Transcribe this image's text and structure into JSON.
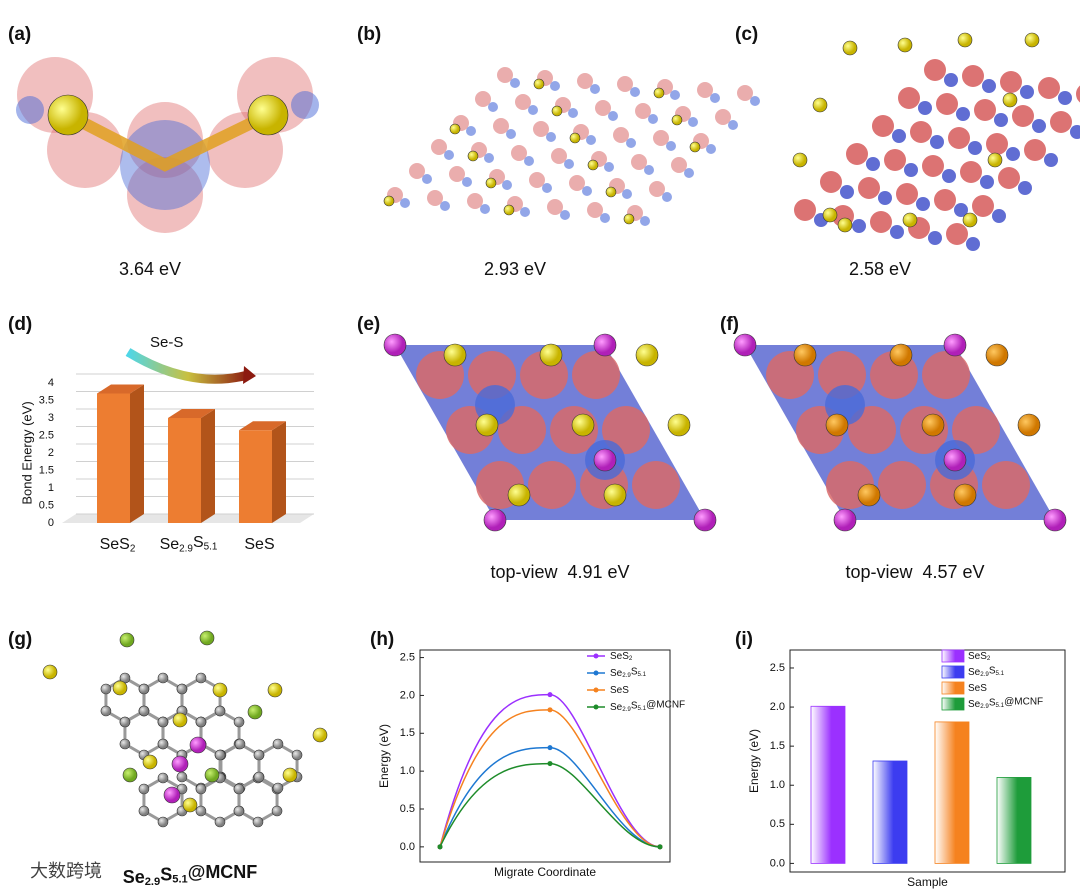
{
  "panels": [
    {
      "label": "(a)",
      "caption": "3.64 eV"
    },
    {
      "label": "(b)",
      "caption": "2.93 eV"
    },
    {
      "label": "(c)",
      "caption": "2.58 eV"
    },
    {
      "label": "(e)",
      "caption": "top-view  4.91 eV"
    },
    {
      "label": "(f)",
      "caption": "top-view  4.57 eV"
    },
    {
      "label": "(g)",
      "caption": "Se2.9S5.1@MCNF"
    }
  ],
  "watermark": "大数跨境",
  "chart_data": [
    {
      "label": "(d)",
      "type": "bar3d",
      "annotation": "Se-S",
      "y_label": "Bond Energy (eV)",
      "categories": [
        "SeS2",
        "Se2.9S5.1",
        "SeS"
      ],
      "values": [
        3.7,
        3.0,
        2.65
      ],
      "color": "#ed7d31",
      "ylim": [
        0,
        4
      ],
      "yticks": [
        0,
        0.5,
        1,
        1.5,
        2,
        2.5,
        3,
        3.5,
        4
      ],
      "grid": true
    },
    {
      "label": "(h)",
      "type": "line",
      "x_label": "Migrate Coordinate",
      "y_label": "Energy (eV)",
      "categories": [
        null,
        null,
        null
      ],
      "series": [
        {
          "name": "SeS2",
          "color": "#9b30ff",
          "values": [
            0,
            2.01,
            0
          ]
        },
        {
          "name": "Se2.9S5.1",
          "color": "#1e78d2",
          "values": [
            0,
            1.31,
            0
          ]
        },
        {
          "name": "SeS",
          "color": "#f5821f",
          "values": [
            0,
            1.81,
            0
          ]
        },
        {
          "name": "Se2.9S5.1@MCNF",
          "color": "#1e8c2a",
          "values": [
            0,
            1.1,
            0
          ]
        }
      ],
      "ylim": [
        -0.2,
        2.6
      ],
      "yticks": [
        {
          "value": 0,
          "label": "0.0"
        },
        {
          "value": 0.5,
          "label": "0.5"
        },
        {
          "value": 1,
          "label": "1.0"
        },
        {
          "value": 1.5,
          "label": "1.5"
        },
        {
          "value": 2,
          "label": "2.0"
        },
        {
          "value": 2.5,
          "label": "2.5"
        }
      ],
      "legend": "upper right"
    },
    {
      "label": "(i)",
      "type": "bar",
      "x_label": "Sample",
      "y_label": "Energy (eV)",
      "series": [
        {
          "name": "SeS2",
          "color": "#9b30ff",
          "values": [
            2.01
          ]
        },
        {
          "name": "Se2.9S5.1",
          "color": "#3c3cf0",
          "values": [
            1.31
          ]
        },
        {
          "name": "SeS",
          "color": "#f5821f",
          "values": [
            1.81
          ]
        },
        {
          "name": "Se2.9S5.1@MCNF",
          "color": "#1e9c3a",
          "values": [
            1.1
          ]
        }
      ],
      "ylim": [
        -0.11,
        2.73
      ],
      "yticks": [
        {
          "value": 0,
          "label": "0.0"
        },
        {
          "value": 0.5,
          "label": "0.5"
        },
        {
          "value": 1,
          "label": "1.0"
        },
        {
          "value": 1.5,
          "label": "1.5"
        },
        {
          "value": 2,
          "label": "2.0"
        },
        {
          "value": 2.5,
          "label": "2.5"
        }
      ],
      "legend": "upper right"
    }
  ]
}
